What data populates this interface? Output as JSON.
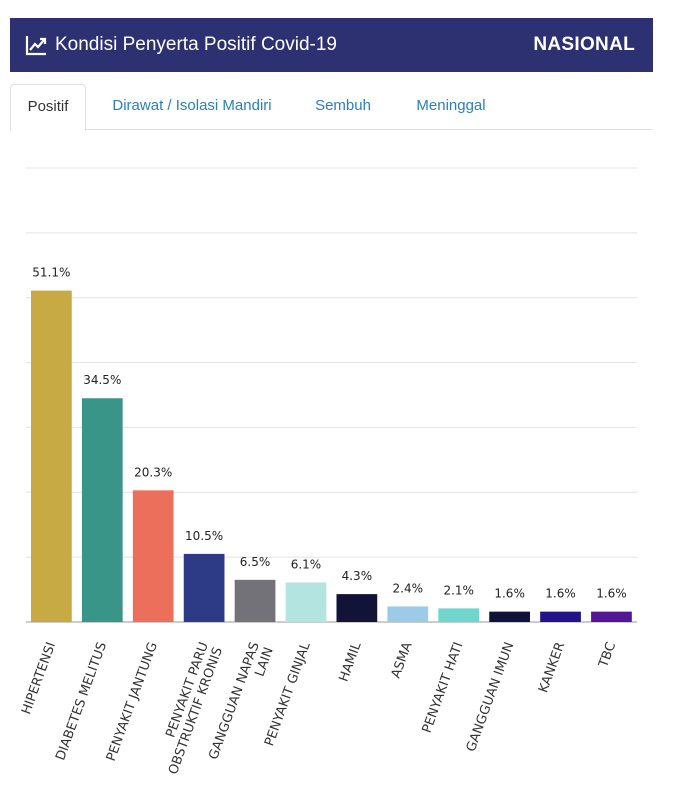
{
  "header": {
    "title": "Kondisi Penyerta Positif Covid-19",
    "region": "NASIONAL",
    "icon": "line-chart-icon",
    "background": "#2d3171"
  },
  "tabs": [
    {
      "label": "Positif",
      "active": true
    },
    {
      "label": "Dirawat / Isolasi Mandiri",
      "active": false
    },
    {
      "label": "Sembuh",
      "active": false
    },
    {
      "label": "Meninggal",
      "active": false
    }
  ],
  "chart_data": {
    "type": "bar",
    "unit": "%",
    "categories": [
      [
        "HIPERTENSI"
      ],
      [
        "DIABETES MELITUS"
      ],
      [
        "PENYAKIT JANTUNG"
      ],
      [
        "PENYAKIT PARU",
        "OBSTRUKTIF KRONIS"
      ],
      [
        "GANGGUAN NAPAS",
        "LAIN"
      ],
      [
        "PENYAKIT GINJAL"
      ],
      [
        "HAMIL"
      ],
      [
        "ASMA"
      ],
      [
        "PENYAKIT HATI"
      ],
      [
        "GANGGUAN IMUN"
      ],
      [
        "KANKER"
      ],
      [
        "TBC"
      ]
    ],
    "values": [
      51.1,
      34.5,
      20.3,
      10.5,
      6.5,
      6.1,
      4.3,
      2.4,
      2.1,
      1.6,
      1.6,
      1.6
    ],
    "value_labels": [
      "51.1%",
      "34.5%",
      "20.3%",
      "10.5%",
      "6.5%",
      "6.1%",
      "4.3%",
      "2.4%",
      "2.1%",
      "1.6%",
      "1.6%",
      "1.6%"
    ],
    "colors": [
      "#c8aa45",
      "#3a9589",
      "#ec6f5b",
      "#2d3a85",
      "#737278",
      "#b4e4df",
      "#121337",
      "#9ccbe7",
      "#6fd6ce",
      "#0d1339",
      "#23138b",
      "#511596"
    ],
    "ylim": [
      0,
      70
    ],
    "grid": true,
    "title": "",
    "xlabel": "",
    "ylabel": ""
  }
}
